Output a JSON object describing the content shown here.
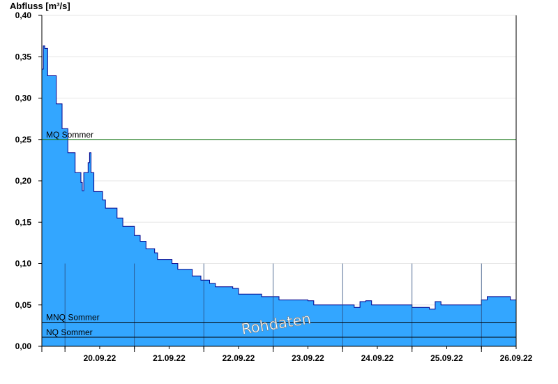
{
  "chart_data": {
    "type": "area",
    "ylabel": "Abfluss [m³/s]",
    "ylim": [
      0,
      0.4
    ],
    "y_ticks": [
      {
        "value": 0.0,
        "label": "0,00"
      },
      {
        "value": 0.05,
        "label": "0,05"
      },
      {
        "value": 0.1,
        "label": "0,10"
      },
      {
        "value": 0.15,
        "label": "0,15"
      },
      {
        "value": 0.2,
        "label": "0,20"
      },
      {
        "value": 0.25,
        "label": "0,25"
      },
      {
        "value": 0.3,
        "label": "0,30"
      },
      {
        "value": 0.35,
        "label": "0,35"
      },
      {
        "value": 0.4,
        "label": "0,40"
      }
    ],
    "xlim": [
      "19.09.22 16:00",
      "26.09.22 12:00"
    ],
    "x_ticks": [
      {
        "label": "20.09.22",
        "day": 1
      },
      {
        "label": "21.09.22",
        "day": 2
      },
      {
        "label": "22.09.22",
        "day": 3
      },
      {
        "label": "23.09.22",
        "day": 4
      },
      {
        "label": "24.09.22",
        "day": 5
      },
      {
        "label": "25.09.22",
        "day": 6
      },
      {
        "label": "26.09.22",
        "day": 7
      }
    ],
    "grid": true,
    "reference_lines": [
      {
        "name": "MQ Sommer",
        "value": 0.25,
        "color": "#1a7a1a"
      },
      {
        "name": "MNQ Sommer",
        "value": 0.029,
        "color": "#000000"
      },
      {
        "name": "NQ Sommer",
        "value": 0.011,
        "color": "#000000"
      }
    ],
    "series": [
      {
        "color": "#33a6ff",
        "line_color": "#00008b",
        "points": [
          [
            "19.09.22 16:00",
            0.335
          ],
          [
            "19.09.22 16:30",
            0.363
          ],
          [
            "19.09.22 17:00",
            0.36
          ],
          [
            "19.09.22 18:00",
            0.327
          ],
          [
            "19.09.22 20:00",
            0.327
          ],
          [
            "19.09.22 21:00",
            0.293
          ],
          [
            "19.09.22 23:00",
            0.263
          ],
          [
            "20.09.22 01:00",
            0.234
          ],
          [
            "20.09.22 03:30",
            0.21
          ],
          [
            "20.09.22 05:30",
            0.198
          ],
          [
            "20.09.22 06:00",
            0.188
          ],
          [
            "20.09.22 06:30",
            0.21
          ],
          [
            "20.09.22 08:00",
            0.222
          ],
          [
            "20.09.22 08:30",
            0.234
          ],
          [
            "20.09.22 09:00",
            0.21
          ],
          [
            "20.09.22 10:00",
            0.187
          ],
          [
            "20.09.22 13:00",
            0.177
          ],
          [
            "20.09.22 14:00",
            0.167
          ],
          [
            "20.09.22 18:00",
            0.155
          ],
          [
            "20.09.22 20:00",
            0.145
          ],
          [
            "20.09.22 22:00",
            0.145
          ],
          [
            "21.09.22 00:00",
            0.134
          ],
          [
            "21.09.22 02:00",
            0.127
          ],
          [
            "21.09.22 04:00",
            0.118
          ],
          [
            "21.09.22 07:00",
            0.113
          ],
          [
            "21.09.22 08:00",
            0.105
          ],
          [
            "21.09.22 12:00",
            0.105
          ],
          [
            "21.09.22 13:00",
            0.1
          ],
          [
            "21.09.22 15:00",
            0.093
          ],
          [
            "21.09.22 19:00",
            0.093
          ],
          [
            "21.09.22 20:00",
            0.085
          ],
          [
            "21.09.22 23:00",
            0.08
          ],
          [
            "22.09.22 02:00",
            0.076
          ],
          [
            "22.09.22 04:00",
            0.072
          ],
          [
            "22.09.22 10:00",
            0.07
          ],
          [
            "22.09.22 12:00",
            0.063
          ],
          [
            "22.09.22 20:00",
            0.06
          ],
          [
            "23.09.22 02:00",
            0.056
          ],
          [
            "23.09.22 12:00",
            0.055
          ],
          [
            "23.09.22 14:00",
            0.05
          ],
          [
            "24.09.22 02:00",
            0.05
          ],
          [
            "24.09.22 04:00",
            0.047
          ],
          [
            "24.09.22 06:00",
            0.054
          ],
          [
            "24.09.22 08:00",
            0.055
          ],
          [
            "24.09.22 10:00",
            0.05
          ],
          [
            "24.09.22 20:00",
            0.05
          ],
          [
            "25.09.22 00:00",
            0.047
          ],
          [
            "25.09.22 06:00",
            0.045
          ],
          [
            "25.09.22 08:00",
            0.054
          ],
          [
            "25.09.22 10:00",
            0.05
          ],
          [
            "25.09.22 20:00",
            0.05
          ],
          [
            "26.09.22 00:00",
            0.056
          ],
          [
            "26.09.22 02:00",
            0.06
          ],
          [
            "26.09.22 06:00",
            0.06
          ],
          [
            "26.09.22 10:00",
            0.056
          ],
          [
            "26.09.22 12:00",
            0.062
          ]
        ]
      }
    ]
  },
  "watermark": "Rohdaten",
  "colors": {
    "fill": "#33a6ff",
    "line": "#00008b",
    "grid": "#e6e6e6",
    "axis": "#000000"
  }
}
